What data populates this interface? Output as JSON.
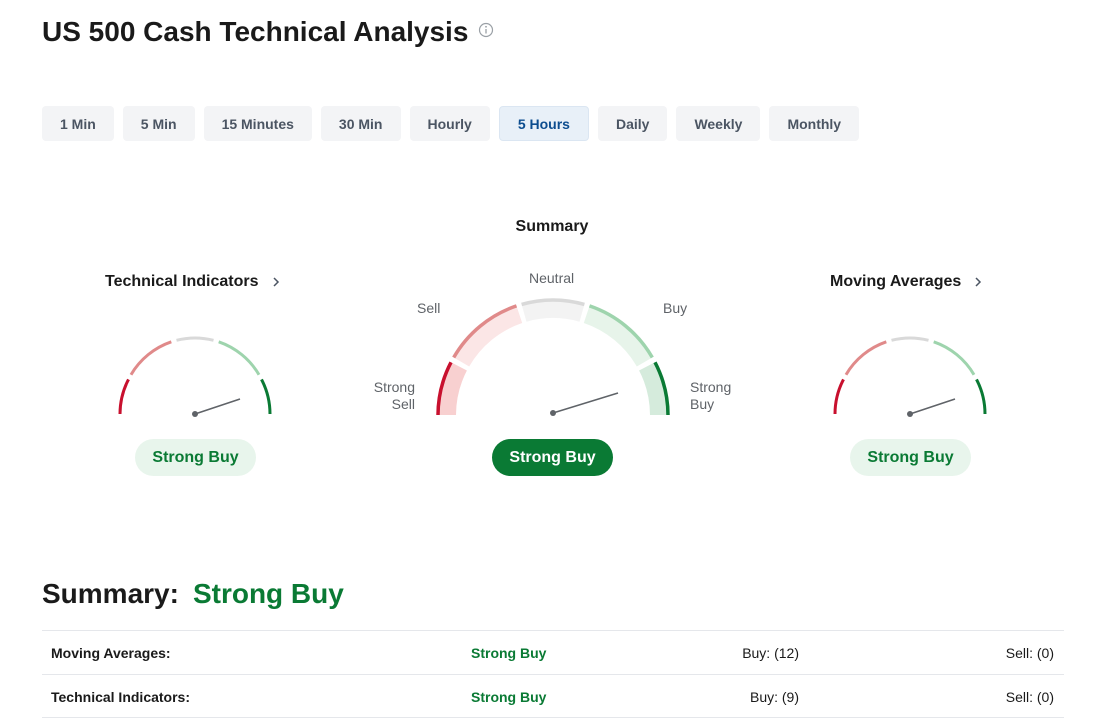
{
  "page": {
    "title": "US 500 Cash Technical Analysis",
    "info_icon": "info-icon"
  },
  "timeframes": [
    {
      "label": "1 Min",
      "active": false
    },
    {
      "label": "5 Min",
      "active": false
    },
    {
      "label": "15 Minutes",
      "active": false
    },
    {
      "label": "30 Min",
      "active": false
    },
    {
      "label": "Hourly",
      "active": false
    },
    {
      "label": "5 Hours",
      "active": true
    },
    {
      "label": "Daily",
      "active": false
    },
    {
      "label": "Weekly",
      "active": false
    },
    {
      "label": "Monthly",
      "active": false
    }
  ],
  "gauges": {
    "summary_heading": "Summary",
    "scale_labels": {
      "strong_sell_1": "Strong",
      "strong_sell_2": "Sell",
      "sell": "Sell",
      "neutral": "Neutral",
      "buy": "Buy",
      "strong_buy_1": "Strong",
      "strong_buy_2": "Buy"
    },
    "technical_indicators": {
      "title": "Technical Indicators",
      "signal": "Strong Buy",
      "needle_level": 0.86
    },
    "summary": {
      "signal": "Strong Buy",
      "needle_level": 0.86
    },
    "moving_averages": {
      "title": "Moving Averages",
      "signal": "Strong Buy",
      "needle_level": 0.86
    }
  },
  "summary": {
    "label": "Summary:",
    "value": "Strong Buy",
    "rows": [
      {
        "name": "Moving Averages:",
        "signal": "Strong Buy",
        "buy": "Buy: (12)",
        "sell": "Sell: (0)"
      },
      {
        "name": "Technical Indicators:",
        "signal": "Strong Buy",
        "buy": "Buy: (9)",
        "sell": "Sell: (0)"
      }
    ]
  },
  "colors": {
    "accent_green": "#0a7a34",
    "strong_sell": "#c8102e",
    "sell": "#e08a8a",
    "neutral": "#d9d9d9",
    "buy": "#9ed4ad",
    "strong_buy": "#0a7a34",
    "active_tab_bg": "#e8f0f8",
    "active_tab_text": "#0c4d8f"
  }
}
